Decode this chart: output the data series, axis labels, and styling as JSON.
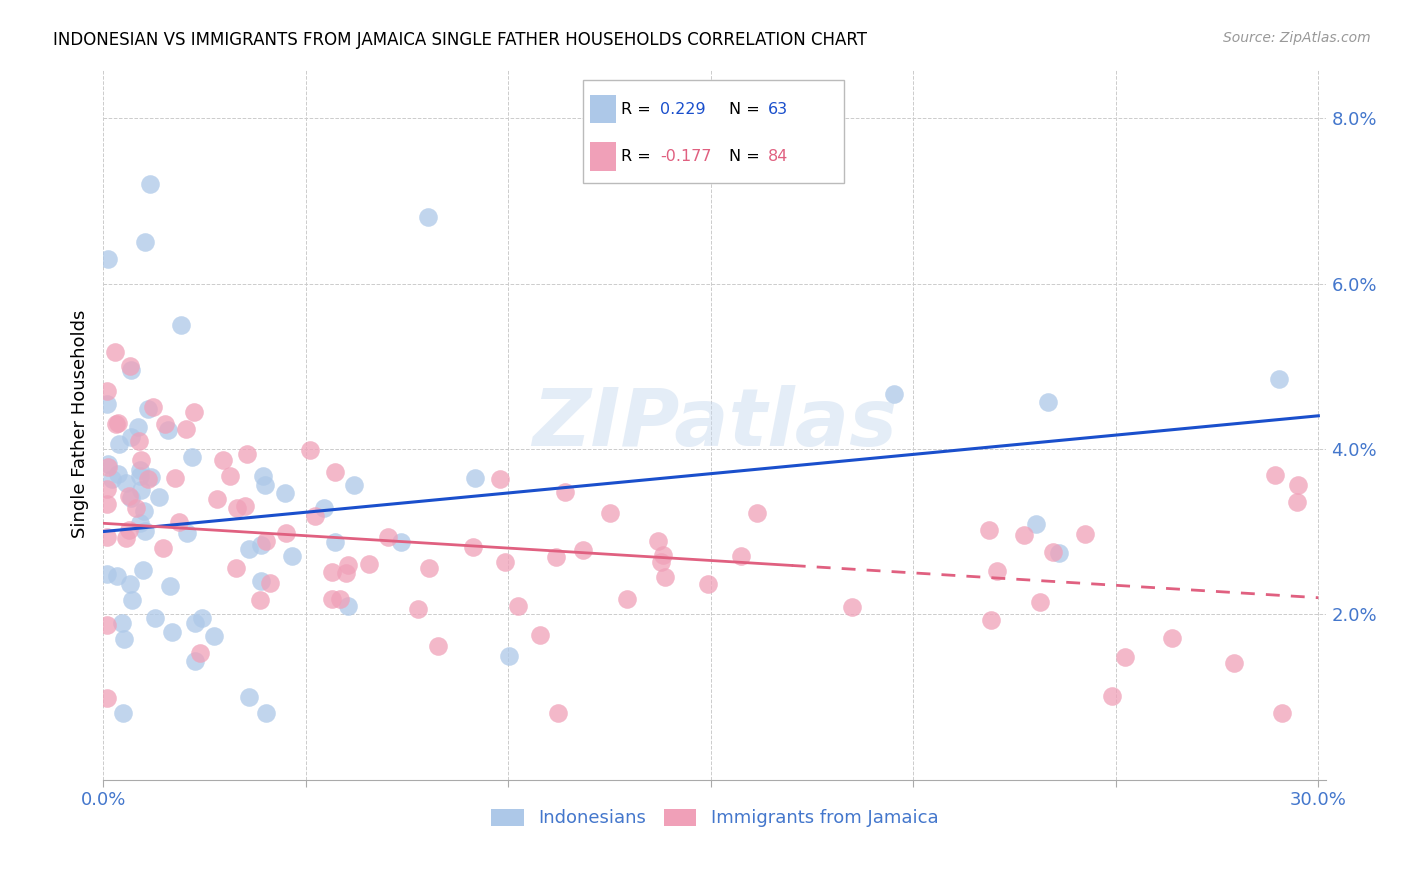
{
  "title": "INDONESIAN VS IMMIGRANTS FROM JAMAICA SINGLE FATHER HOUSEHOLDS CORRELATION CHART",
  "source": "Source: ZipAtlas.com",
  "ylabel": "Single Father Households",
  "x_min": 0.0,
  "x_max": 0.302,
  "y_min": 0.0,
  "y_max": 0.086,
  "x_tick_positions": [
    0.0,
    0.05,
    0.1,
    0.15,
    0.2,
    0.25,
    0.3
  ],
  "x_tick_labels": [
    "0.0%",
    "",
    "",
    "",
    "",
    "",
    "30.0%"
  ],
  "y_tick_positions": [
    0.0,
    0.02,
    0.04,
    0.06,
    0.08
  ],
  "y_tick_labels": [
    "",
    "2.0%",
    "4.0%",
    "6.0%",
    "8.0%"
  ],
  "legend1_label": "Indonesians",
  "legend2_label": "Immigrants from Jamaica",
  "R1": 0.229,
  "N1": 63,
  "R2": -0.177,
  "N2": 84,
  "color_blue": "#adc8e8",
  "color_pink": "#f0a0b8",
  "line_color_blue": "#1a4fcc",
  "line_color_pink": "#e06080",
  "tick_color": "#4477cc",
  "watermark": "ZIPatlas",
  "blue_line_start_y": 0.03,
  "blue_line_end_y": 0.044,
  "pink_line_start_y": 0.031,
  "pink_line_end_y": 0.022
}
